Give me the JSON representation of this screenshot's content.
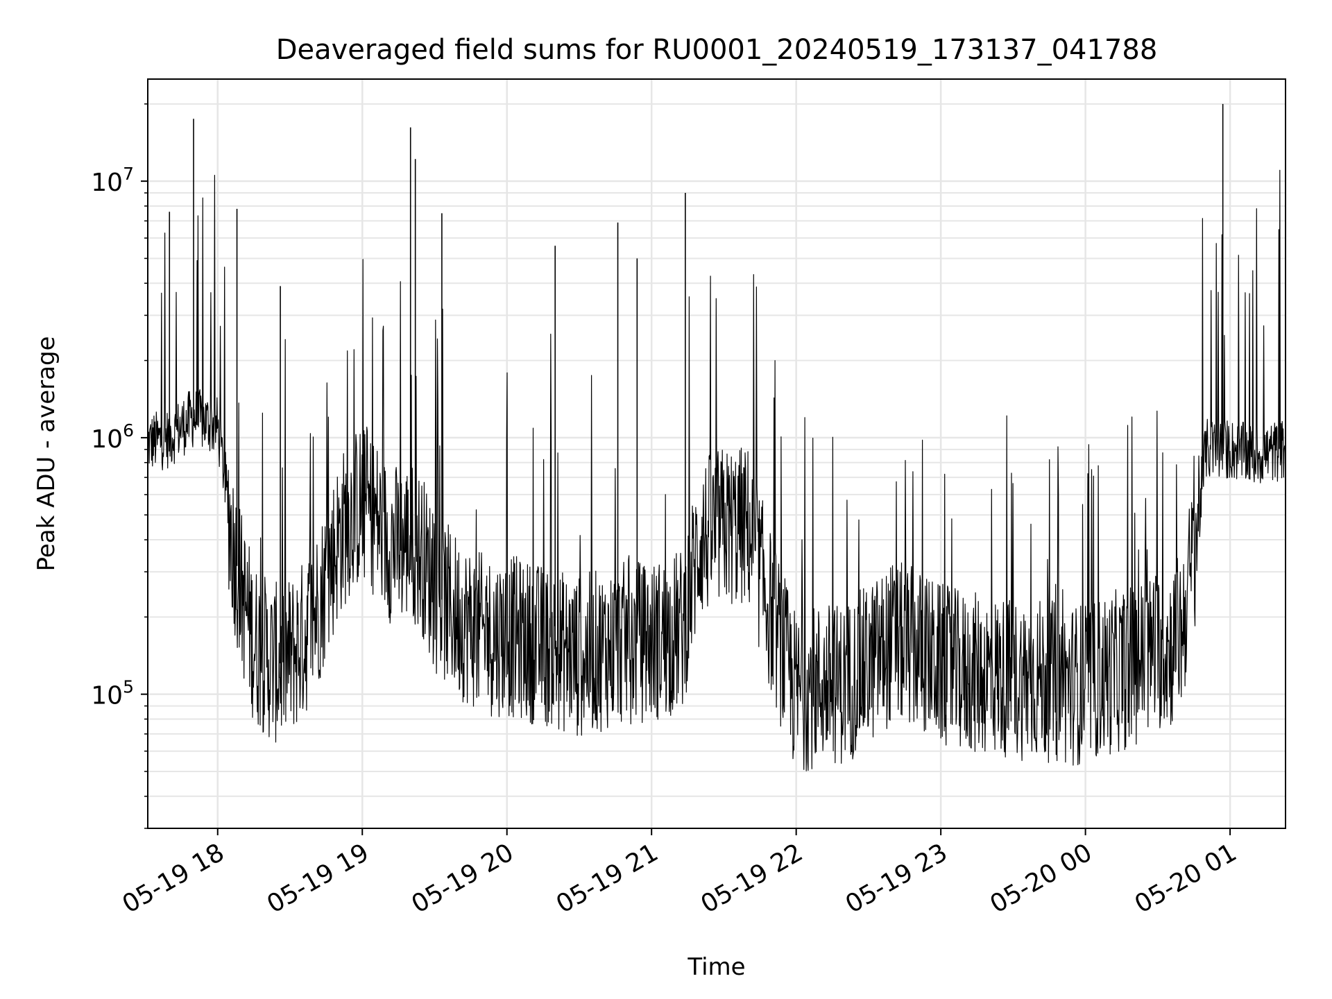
{
  "chart_data": {
    "type": "line",
    "title": "Deaveraged field sums for RU0001_20240519_173137_041788",
    "xlabel": "Time",
    "ylabel": "Peak ADU - average",
    "yscale": "log",
    "ylim": [
      30000,
      25000000
    ],
    "xlim": [
      "2024-05-19 17:31",
      "2024-05-20 01:23"
    ],
    "grid": true,
    "line_color": "#000000",
    "x_ticks": [
      "05-19 18",
      "05-19 19",
      "05-19 20",
      "05-19 21",
      "05-19 22",
      "05-19 23",
      "05-20 00",
      "05-20 01"
    ],
    "y_ticks": [
      {
        "base": "10",
        "exp": "5",
        "value": 100000
      },
      {
        "base": "10",
        "exp": "6",
        "value": 1000000
      },
      {
        "base": "10",
        "exp": "7",
        "value": 10000000
      }
    ],
    "series": [
      {
        "x": [
          "2024-05-19 17:31",
          "2024-05-19 17:40",
          "2024-05-19 17:45",
          "2024-05-19 17:50",
          "2024-05-19 17:55",
          "2024-05-19 18:00",
          "2024-05-19 18:03",
          "2024-05-19 18:06",
          "2024-05-19 18:10",
          "2024-05-19 18:15",
          "2024-05-19 18:20",
          "2024-05-19 18:25",
          "2024-05-19 18:30",
          "2024-05-19 18:35",
          "2024-05-19 18:40",
          "2024-05-19 18:45",
          "2024-05-19 18:50",
          "2024-05-19 18:55",
          "2024-05-19 19:00",
          "2024-05-19 19:05",
          "2024-05-19 19:10",
          "2024-05-19 19:15",
          "2024-05-19 19:20",
          "2024-05-19 19:25",
          "2024-05-19 19:30",
          "2024-05-19 19:40",
          "2024-05-19 19:50",
          "2024-05-19 20:00",
          "2024-05-19 20:10",
          "2024-05-19 20:20",
          "2024-05-19 20:30",
          "2024-05-19 20:40",
          "2024-05-19 20:50",
          "2024-05-19 21:00",
          "2024-05-19 21:08",
          "2024-05-19 21:13",
          "2024-05-19 21:20",
          "2024-05-19 21:30",
          "2024-05-19 21:40",
          "2024-05-19 21:45",
          "2024-05-19 21:50",
          "2024-05-19 21:55",
          "2024-05-19 22:00",
          "2024-05-19 22:10",
          "2024-05-19 22:20",
          "2024-05-19 22:30",
          "2024-05-19 22:40",
          "2024-05-19 22:50",
          "2024-05-19 23:00",
          "2024-05-19 23:10",
          "2024-05-19 23:20",
          "2024-05-19 23:30",
          "2024-05-19 23:40",
          "2024-05-19 23:50",
          "2024-05-20 00:00",
          "2024-05-20 00:10",
          "2024-05-20 00:20",
          "2024-05-20 00:30",
          "2024-05-20 00:35",
          "2024-05-20 00:40",
          "2024-05-20 00:45",
          "2024-05-20 00:50",
          "2024-05-20 01:00",
          "2024-05-20 01:10",
          "2024-05-20 01:23"
        ],
        "values": [
          950000,
          1000000,
          1100000,
          1200000,
          1150000,
          1100000,
          700000,
          400000,
          250000,
          160000,
          140000,
          130000,
          140000,
          160000,
          200000,
          280000,
          400000,
          500000,
          550000,
          500000,
          400000,
          380000,
          400000,
          350000,
          250000,
          200000,
          170000,
          170000,
          160000,
          150000,
          140000,
          150000,
          160000,
          160000,
          170000,
          180000,
          400000,
          450000,
          450000,
          300000,
          200000,
          140000,
          100000,
          110000,
          110000,
          130000,
          160000,
          150000,
          130000,
          120000,
          120000,
          115000,
          115000,
          110000,
          110000,
          120000,
          130000,
          150000,
          150000,
          180000,
          350000,
          900000,
          900000,
          850000,
          900000
        ]
      }
    ],
    "spikes": [
      {
        "x": "2024-05-19 17:40",
        "y": 7600000
      },
      {
        "x": "2024-05-19 17:50",
        "y": 17500000
      },
      {
        "x": "2024-05-19 18:08",
        "y": 7800000
      },
      {
        "x": "2024-05-19 18:26",
        "y": 3900000
      },
      {
        "x": "2024-05-19 19:20",
        "y": 16200000
      },
      {
        "x": "2024-05-19 19:22",
        "y": 12200000
      },
      {
        "x": "2024-05-19 19:33",
        "y": 7500000
      },
      {
        "x": "2024-05-19 20:20",
        "y": 5600000
      },
      {
        "x": "2024-05-19 20:46",
        "y": 6900000
      },
      {
        "x": "2024-05-19 20:54",
        "y": 5000000
      },
      {
        "x": "2024-05-19 21:14",
        "y": 9000000
      },
      {
        "x": "2024-05-20 00:57",
        "y": 20000000
      }
    ]
  }
}
